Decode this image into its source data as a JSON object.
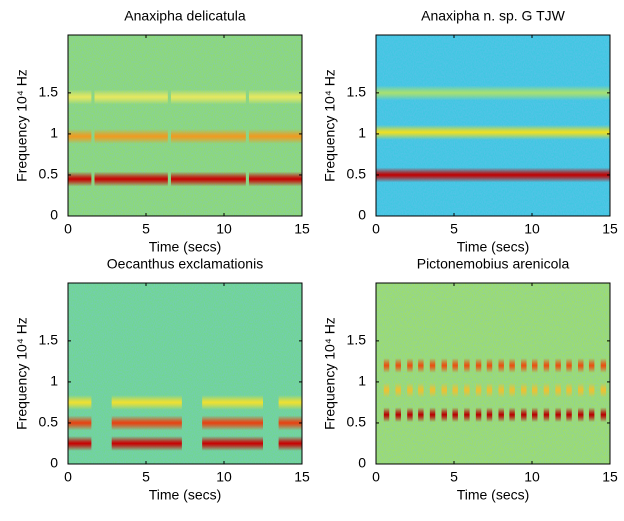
{
  "chart_data": [
    {
      "type": "spectrogram",
      "title": "Anaxipha delicatula",
      "xlabel": "Time (secs)",
      "ylabel": "Frequency 10⁴ Hz",
      "xlim": [
        0,
        15
      ],
      "ylim": [
        0,
        2.205
      ],
      "xticks": [
        0,
        5,
        10,
        15
      ],
      "yticks": [
        0,
        0.5,
        1,
        1.5
      ],
      "background": "#8fdc6a",
      "bands": [
        0.45,
        0.97,
        1.45
      ],
      "band_colors": [
        "#c80000",
        "#f09a20",
        "#e6e860"
      ],
      "segments": [
        [
          0,
          1.5
        ],
        [
          1.7,
          6.4
        ],
        [
          6.6,
          11.4
        ],
        [
          11.6,
          15
        ]
      ]
    },
    {
      "type": "spectrogram",
      "title": "Anaxipha n. sp. G TJW",
      "xlabel": "Time (secs)",
      "ylabel": "Frequency 10⁴ Hz",
      "xlim": [
        0,
        15
      ],
      "ylim": [
        0,
        2.205
      ],
      "xticks": [
        0,
        5,
        10,
        15
      ],
      "yticks": [
        0,
        0.5,
        1,
        1.5
      ],
      "background": "#3cc8e0",
      "bands": [
        0.5,
        1.02,
        1.5
      ],
      "band_colors": [
        "#c00000",
        "#f0e020",
        "#a8e070"
      ],
      "segments": [
        [
          0,
          15
        ]
      ]
    },
    {
      "type": "spectrogram",
      "title": "Oecanthus exclamationis",
      "xlabel": "Time (secs)",
      "ylabel": "Frequency 10⁴ Hz",
      "xlim": [
        0,
        15
      ],
      "ylim": [
        0,
        2.205
      ],
      "xticks": [
        0,
        5,
        10,
        15
      ],
      "yticks": [
        0,
        0.5,
        1,
        1.5
      ],
      "background": "#70d88a",
      "bands": [
        0.25,
        0.5,
        0.75
      ],
      "band_colors": [
        "#c80000",
        "#e84010",
        "#f0e030"
      ],
      "segments": [
        [
          0,
          1.5
        ],
        [
          2.8,
          7.3
        ],
        [
          8.6,
          12.5
        ],
        [
          13.5,
          15
        ]
      ]
    },
    {
      "type": "spectrogram",
      "title": "Pictonemobius arenicola",
      "xlabel": "Time (secs)",
      "ylabel": "Frequency 10⁴ Hz",
      "xlim": [
        0,
        15
      ],
      "ylim": [
        0,
        2.205
      ],
      "xticks": [
        0,
        5,
        10,
        15
      ],
      "yticks": [
        0,
        0.5,
        1,
        1.5
      ],
      "background": "#a0e060",
      "bands": [
        0.6,
        1.2,
        0.9
      ],
      "band_colors": [
        "#b80000",
        "#e85010",
        "#f0c030"
      ],
      "segments": [
        [
          0.5,
          0.85
        ],
        [
          1.25,
          1.6
        ],
        [
          2.0,
          2.35
        ],
        [
          2.7,
          3.05
        ],
        [
          3.45,
          3.8
        ],
        [
          4.2,
          4.55
        ],
        [
          4.9,
          5.25
        ],
        [
          5.65,
          6.0
        ],
        [
          6.4,
          6.75
        ],
        [
          7.1,
          7.45
        ],
        [
          7.85,
          8.2
        ],
        [
          8.55,
          8.9
        ],
        [
          9.3,
          9.65
        ],
        [
          10.0,
          10.35
        ],
        [
          10.75,
          11.1
        ],
        [
          11.5,
          11.85
        ],
        [
          12.2,
          12.55
        ],
        [
          12.95,
          13.3
        ],
        [
          13.65,
          14.0
        ],
        [
          14.4,
          14.75
        ]
      ]
    }
  ]
}
